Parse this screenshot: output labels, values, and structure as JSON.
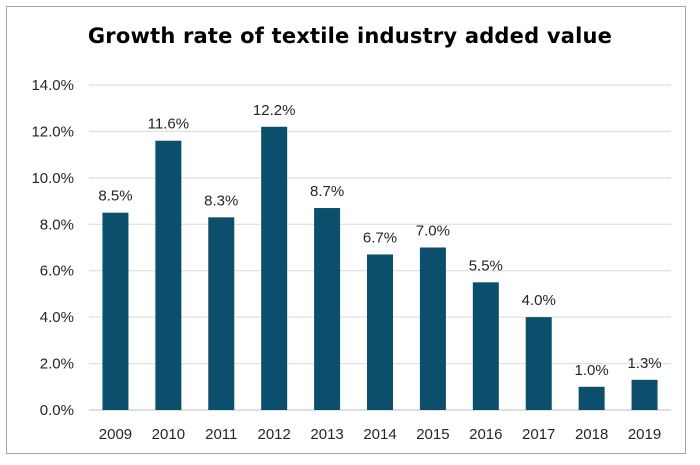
{
  "chart_data": {
    "type": "bar",
    "title": "Growth rate of textile industry added value",
    "xlabel": "",
    "ylabel": "",
    "categories": [
      "2009",
      "2010",
      "2011",
      "2012",
      "2013",
      "2014",
      "2015",
      "2016",
      "2017",
      "2018",
      "2019"
    ],
    "values": [
      8.5,
      11.6,
      8.3,
      12.2,
      8.7,
      6.7,
      7.0,
      5.5,
      4.0,
      1.0,
      1.3
    ],
    "data_labels": [
      "8.5%",
      "11.6%",
      "8.3%",
      "12.2%",
      "8.7%",
      "6.7%",
      "7.0%",
      "5.5%",
      "4.0%",
      "1.0%",
      "1.3%"
    ],
    "ylim": [
      0,
      14
    ],
    "yticks": [
      "0.0%",
      "2.0%",
      "4.0%",
      "6.0%",
      "8.0%",
      "10.0%",
      "12.0%",
      "14.0%"
    ],
    "grid": true,
    "legend": "none",
    "colors": {
      "bar": "#0b4f6c",
      "grid": "#d9d9d9",
      "axis": "#bfbfbf",
      "text": "#262626"
    }
  }
}
